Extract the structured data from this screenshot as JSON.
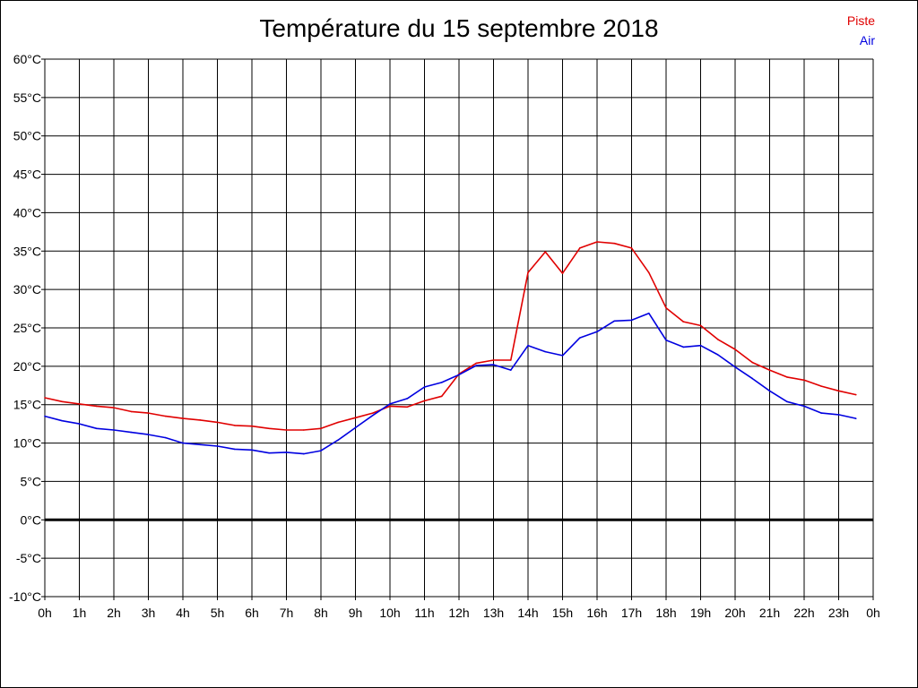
{
  "chart_data": {
    "type": "line",
    "title": "Température du 15 septembre 2018",
    "xlabel": "",
    "ylabel": "",
    "x_tick_labels": [
      "0h",
      "1h",
      "2h",
      "3h",
      "4h",
      "5h",
      "6h",
      "7h",
      "8h",
      "9h",
      "10h",
      "11h",
      "12h",
      "13h",
      "14h",
      "15h",
      "16h",
      "17h",
      "18h",
      "19h",
      "20h",
      "21h",
      "22h",
      "23h",
      "0h"
    ],
    "y_tick_labels": [
      "60°C",
      "55°C",
      "50°C",
      "45°C",
      "40°C",
      "35°C",
      "30°C",
      "25°C",
      "20°C",
      "15°C",
      "10°C",
      "5°C",
      "0°C",
      "-5°C",
      "-10°C"
    ],
    "xlim": [
      0,
      24
    ],
    "ylim": [
      -10,
      60
    ],
    "grid": true,
    "legend_position": "top-right",
    "x": [
      0,
      0.5,
      1,
      1.5,
      2,
      2.5,
      3,
      3.5,
      4,
      4.5,
      5,
      5.5,
      6,
      6.5,
      7,
      7.5,
      8,
      8.5,
      9,
      9.5,
      10,
      10.5,
      11,
      11.5,
      12,
      12.5,
      13,
      13.5,
      14,
      14.5,
      15,
      15.5,
      16,
      16.5,
      17,
      17.5,
      18,
      18.5,
      19,
      19.5,
      20,
      20.5,
      21,
      21.5,
      22,
      22.5,
      23,
      23.5
    ],
    "series": [
      {
        "name": "Piste",
        "color": "#e00000",
        "values": [
          15.9,
          15.4,
          15.1,
          14.8,
          14.6,
          14.1,
          13.9,
          13.5,
          13.2,
          13.0,
          12.7,
          12.3,
          12.2,
          11.9,
          11.7,
          11.7,
          11.9,
          12.7,
          13.3,
          13.9,
          14.8,
          14.7,
          15.5,
          16.1,
          19.0,
          20.4,
          20.8,
          20.8,
          32.2,
          34.9,
          32.1,
          35.4,
          36.2,
          36.0,
          35.4,
          32.2,
          27.6,
          25.8,
          25.3,
          23.5,
          22.2,
          20.5,
          19.5,
          18.6,
          18.2,
          17.4,
          16.8,
          16.3
        ]
      },
      {
        "name": "Air",
        "color": "#0000e0",
        "values": [
          13.5,
          12.9,
          12.5,
          11.9,
          11.7,
          11.4,
          11.1,
          10.7,
          10.0,
          9.8,
          9.6,
          9.2,
          9.1,
          8.7,
          8.8,
          8.6,
          9.0,
          10.4,
          12.0,
          13.6,
          15.1,
          15.8,
          17.3,
          17.9,
          18.9,
          20.1,
          20.2,
          19.5,
          22.7,
          21.9,
          21.4,
          23.7,
          24.5,
          25.9,
          26.0,
          26.9,
          23.4,
          22.5,
          22.7,
          21.5,
          19.9,
          18.4,
          16.8,
          15.4,
          14.8,
          13.9,
          13.7,
          13.2
        ]
      }
    ],
    "reference_line": {
      "y": 0,
      "color": "#000000"
    }
  }
}
